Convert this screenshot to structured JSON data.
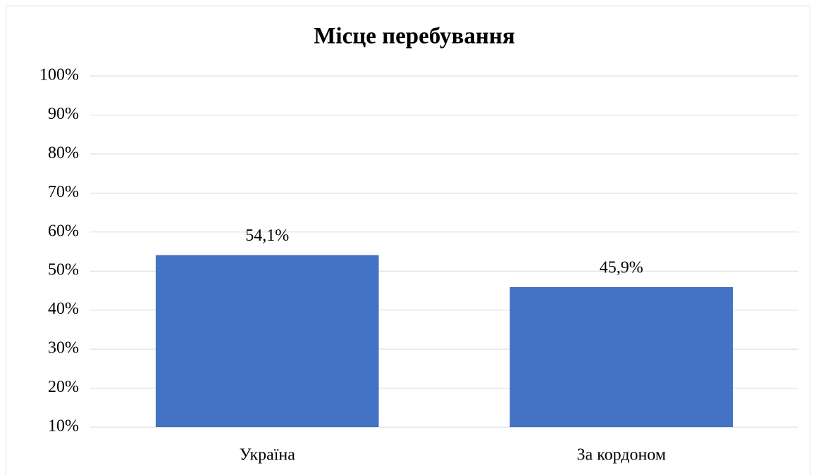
{
  "chart_data": {
    "type": "bar",
    "title": "Місце перебування",
    "categories": [
      "Україна",
      "За кордоном"
    ],
    "values": [
      54.1,
      45.9
    ],
    "value_labels": [
      "54,1%",
      "45,9%"
    ],
    "color": "#4472c4",
    "ylim": [
      10,
      100
    ],
    "yticks": [
      {
        "value": 10,
        "label": "10%"
      },
      {
        "value": 20,
        "label": "20%"
      },
      {
        "value": 30,
        "label": "30%"
      },
      {
        "value": 40,
        "label": "40%"
      },
      {
        "value": 50,
        "label": "50%"
      },
      {
        "value": 60,
        "label": "60%"
      },
      {
        "value": 70,
        "label": "70%"
      },
      {
        "value": 80,
        "label": "80%"
      },
      {
        "value": 90,
        "label": "90%"
      },
      {
        "value": 100,
        "label": "100%"
      }
    ],
    "grid": true
  }
}
